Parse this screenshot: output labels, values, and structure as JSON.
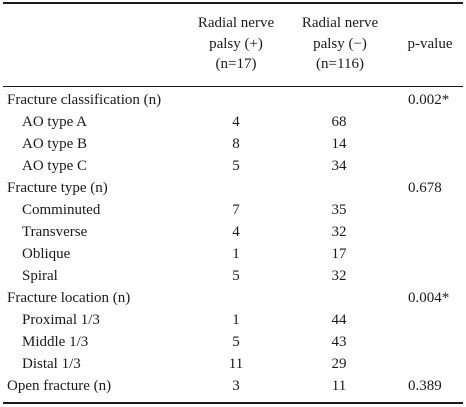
{
  "headers": {
    "col1": [
      "Radial nerve",
      "palsy (+)",
      "(n=17)"
    ],
    "col2": [
      "Radial nerve",
      "palsy (−)",
      "(n=116)"
    ],
    "pvalue": "p-value"
  },
  "rows": [
    {
      "label": "Fracture classification (n)",
      "v1": "",
      "v2": "",
      "p": "0.002*",
      "sub": false
    },
    {
      "label": "AO type A",
      "v1": "4",
      "v2": "68",
      "p": "",
      "sub": true
    },
    {
      "label": "AO type B",
      "v1": "8",
      "v2": "14",
      "p": "",
      "sub": true
    },
    {
      "label": "AO type C",
      "v1": "5",
      "v2": "34",
      "p": "",
      "sub": true
    },
    {
      "label": "Fracture type (n)",
      "v1": "",
      "v2": "",
      "p": "0.678",
      "sub": false
    },
    {
      "label": "Comminuted",
      "v1": "7",
      "v2": "35",
      "p": "",
      "sub": true
    },
    {
      "label": "Transverse",
      "v1": "4",
      "v2": "32",
      "p": "",
      "sub": true
    },
    {
      "label": "Oblique",
      "v1": "1",
      "v2": "17",
      "p": "",
      "sub": true
    },
    {
      "label": "Spiral",
      "v1": "5",
      "v2": "32",
      "p": "",
      "sub": true
    },
    {
      "label": "Fracture location (n)",
      "v1": "",
      "v2": "",
      "p": "0.004*",
      "sub": false
    },
    {
      "label": "Proximal 1/3",
      "v1": "1",
      "v2": "44",
      "p": "",
      "sub": true
    },
    {
      "label": "Middle 1/3",
      "v1": "5",
      "v2": "43",
      "p": "",
      "sub": true
    },
    {
      "label": "Distal 1/3",
      "v1": "11",
      "v2": "29",
      "p": "",
      "sub": true
    },
    {
      "label": "Open fracture (n)",
      "v1": "3",
      "v2": "11",
      "p": "0.389",
      "sub": false
    }
  ]
}
